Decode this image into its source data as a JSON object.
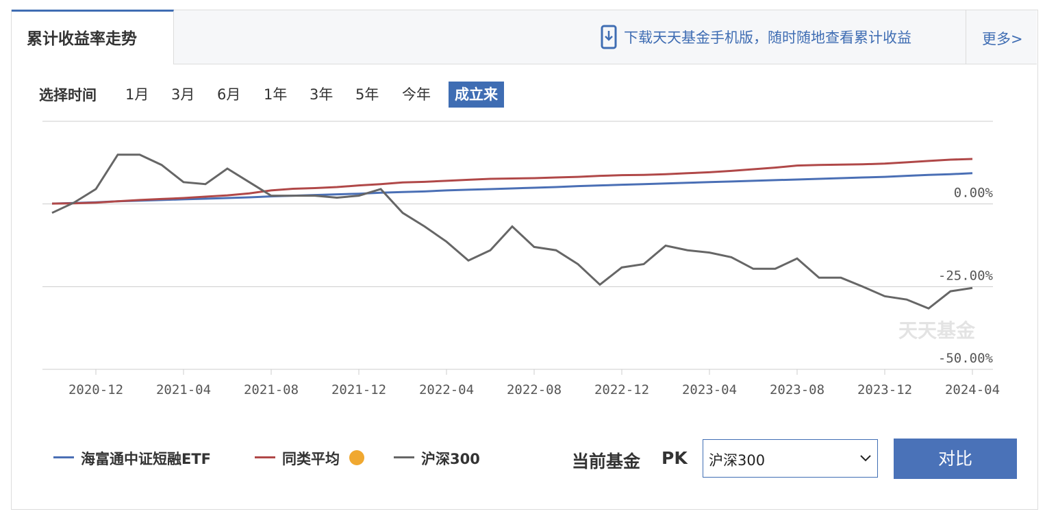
{
  "tab": {
    "title": "累计收益率走势"
  },
  "header": {
    "download": "下载天天基金手机版，随时随地查看累计收益",
    "more": "更多>"
  },
  "time_select": {
    "label": "选择时间",
    "options": [
      "1月",
      "3月",
      "6月",
      "1年",
      "3年",
      "5年",
      "今年",
      "成立来"
    ],
    "selected": "成立来"
  },
  "watermark": "天天基金",
  "compare": {
    "label": "当前基金",
    "pk": "PK",
    "select": "沪深300",
    "button": "对比"
  },
  "chart_data": {
    "type": "line",
    "x": [
      "2020-10",
      "2020-11",
      "2020-12",
      "2021-01",
      "2021-02",
      "2021-03",
      "2021-04",
      "2021-05",
      "2021-06",
      "2021-07",
      "2021-08",
      "2021-09",
      "2021-10",
      "2021-11",
      "2021-12",
      "2022-01",
      "2022-02",
      "2022-03",
      "2022-04",
      "2022-05",
      "2022-06",
      "2022-07",
      "2022-08",
      "2022-09",
      "2022-10",
      "2022-11",
      "2022-12",
      "2023-01",
      "2023-02",
      "2023-03",
      "2023-04",
      "2023-05",
      "2023-06",
      "2023-07",
      "2023-08",
      "2023-09",
      "2023-10",
      "2023-11",
      "2023-12",
      "2024-01",
      "2024-02",
      "2024-03",
      "2024-04"
    ],
    "series": [
      {
        "name": "海富通中证短融ETF",
        "color": "#4a6fb5",
        "values": [
          0.1,
          0.3,
          0.5,
          0.8,
          1.0,
          1.2,
          1.4,
          1.6,
          1.8,
          2.0,
          2.3,
          2.5,
          2.7,
          2.9,
          3.1,
          3.4,
          3.6,
          3.8,
          4.1,
          4.3,
          4.5,
          4.7,
          4.9,
          5.1,
          5.4,
          5.6,
          5.8,
          6.0,
          6.2,
          6.4,
          6.6,
          6.8,
          7.0,
          7.2,
          7.4,
          7.6,
          7.8,
          8.0,
          8.2,
          8.5,
          8.8,
          9.0,
          9.3
        ]
      },
      {
        "name": "同类平均",
        "color": "#b04848",
        "values": [
          0.1,
          0.2,
          0.4,
          0.8,
          1.2,
          1.5,
          1.8,
          2.2,
          2.6,
          3.2,
          4.1,
          4.6,
          4.8,
          5.1,
          5.6,
          6.0,
          6.5,
          6.7,
          7.0,
          7.3,
          7.6,
          7.7,
          7.8,
          8.0,
          8.2,
          8.5,
          8.7,
          8.8,
          9.0,
          9.3,
          9.6,
          10.0,
          10.5,
          11.0,
          11.6,
          11.8,
          11.9,
          12.0,
          12.2,
          12.6,
          13.0,
          13.4,
          13.6
        ]
      },
      {
        "name": "沪深300",
        "color": "#666666",
        "values": [
          -2.7,
          0.4,
          4.5,
          14.9,
          14.9,
          11.8,
          6.6,
          6.0,
          10.7,
          6.6,
          2.5,
          2.5,
          2.5,
          1.9,
          2.5,
          4.5,
          -2.7,
          -6.8,
          -11.4,
          -17.1,
          -14.0,
          -6.8,
          -13.0,
          -14.0,
          -18.2,
          -24.4,
          -19.2,
          -18.2,
          -12.6,
          -14.0,
          -14.7,
          -16.1,
          -19.6,
          -19.6,
          -16.5,
          -22.3,
          -22.3,
          -25.0,
          -27.9,
          -28.9,
          -31.6,
          -26.4,
          -25.4
        ]
      }
    ],
    "ylim": [
      -50,
      25
    ],
    "yticks": [
      {
        "value": 0,
        "label": "0.00%"
      },
      {
        "value": -25,
        "label": "-25.00%"
      },
      {
        "value": -50,
        "label": "-50.00%"
      }
    ],
    "grid": true
  }
}
